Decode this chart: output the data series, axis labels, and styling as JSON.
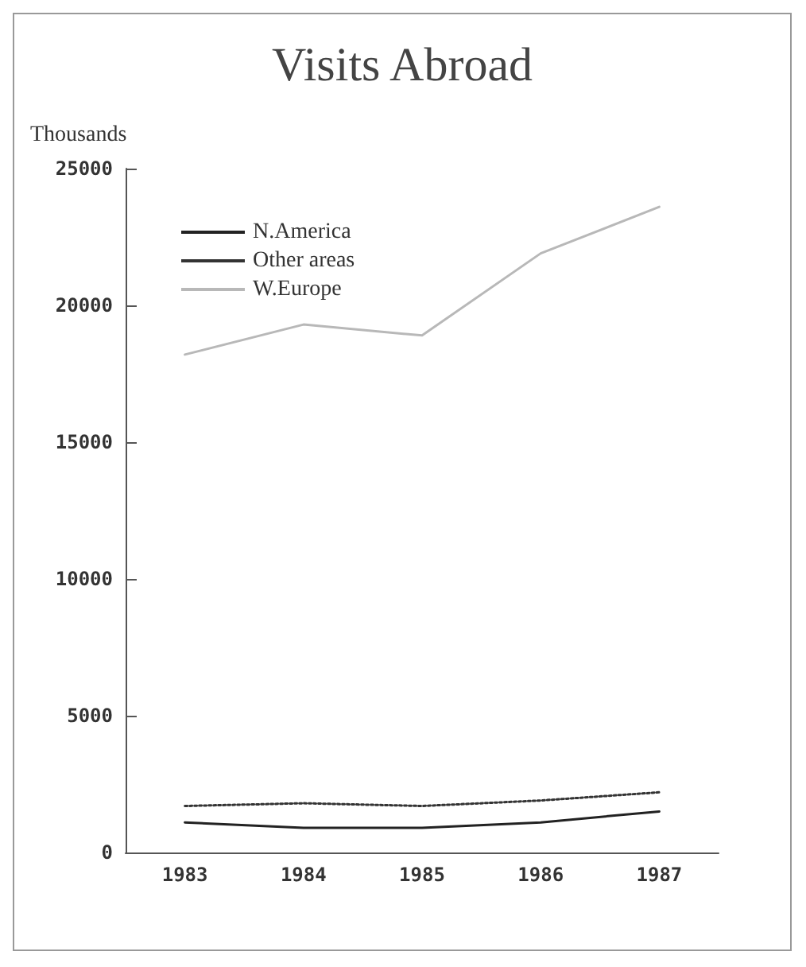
{
  "chart_data": {
    "type": "line",
    "title": "Visits Abroad",
    "ylabel": "Thousands",
    "categories": [
      "1983",
      "1984",
      "1985",
      "1986",
      "1987"
    ],
    "series": [
      {
        "name": "N.America",
        "color": "#222222",
        "line_style": "solid",
        "values": [
          1100,
          900,
          900,
          1100,
          1500
        ]
      },
      {
        "name": "Other areas",
        "color": "#333333",
        "line_style": "dotted",
        "values": [
          1700,
          1800,
          1700,
          1900,
          2200
        ]
      },
      {
        "name": "W.Europe",
        "color": "#b8b8b8",
        "line_style": "solid",
        "values": [
          18200,
          19300,
          18900,
          21900,
          23600
        ]
      }
    ],
    "ylim": [
      0,
      25000
    ],
    "yticks": [
      0,
      5000,
      10000,
      15000,
      20000,
      25000
    ],
    "grid": false,
    "legend": "top left",
    "marker": "none"
  }
}
